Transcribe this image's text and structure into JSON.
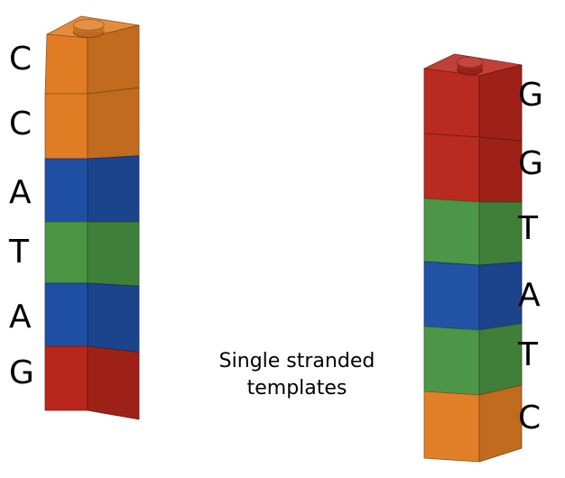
{
  "colors": {
    "C": "#e07c24",
    "A": "#1f4fa3",
    "T": "#4a9443",
    "G": "#b8261c"
  },
  "left_strand": {
    "bases": [
      "C",
      "C",
      "A",
      "T",
      "A",
      "G"
    ]
  },
  "right_strand": {
    "bases": [
      "G",
      "G",
      "T",
      "A",
      "T",
      "C"
    ]
  },
  "caption": {
    "line1": "Single stranded",
    "line2": "templates"
  }
}
